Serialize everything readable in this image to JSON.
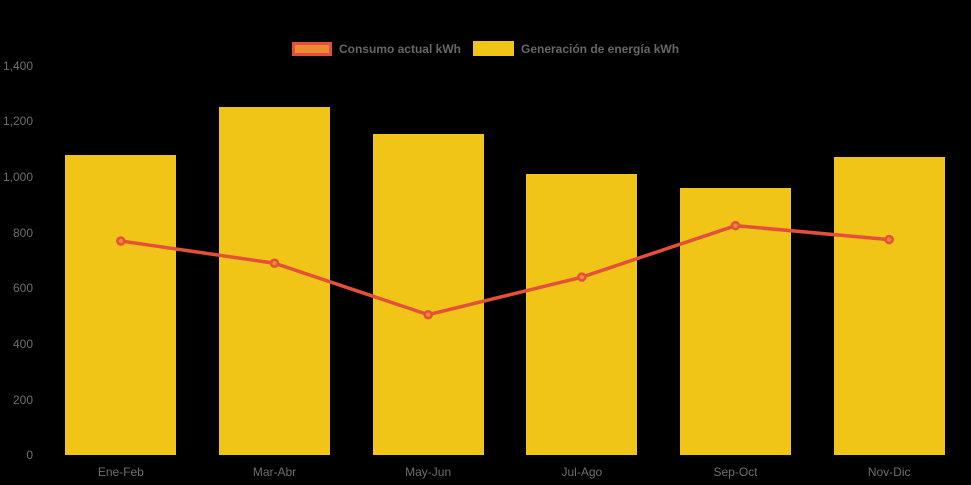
{
  "chart_data": {
    "type": "bar",
    "subtype": "column-with-line-overlay",
    "title": "",
    "xlabel": "",
    "ylabel": "",
    "categories": [
      "Ene-Feb",
      "Mar-Abr",
      "May-Jun",
      "Jul-Ago",
      "Sep-Oct",
      "Nov-Dic"
    ],
    "series": [
      {
        "name": "Consumo actual kWh",
        "type": "line",
        "values": [
          770,
          690,
          505,
          640,
          825,
          775
        ],
        "color": "#E4503A",
        "marker_fill": "#EE8934"
      },
      {
        "name": "Generación de energía kWh",
        "type": "column",
        "values": [
          1080,
          1250,
          1155,
          1010,
          960,
          1070
        ],
        "color": "#F0C517"
      }
    ],
    "ylim": [
      0,
      1400
    ],
    "ytick_step": 200,
    "ytick_labels": [
      "0",
      "200",
      "400",
      "600",
      "800",
      "1,000",
      "1,200",
      "1,400"
    ],
    "grid": false,
    "legend_position": "top-center",
    "background_color": "#000000",
    "axis_text_color": "#6E6E6E",
    "legend_text_color": "#666666"
  }
}
